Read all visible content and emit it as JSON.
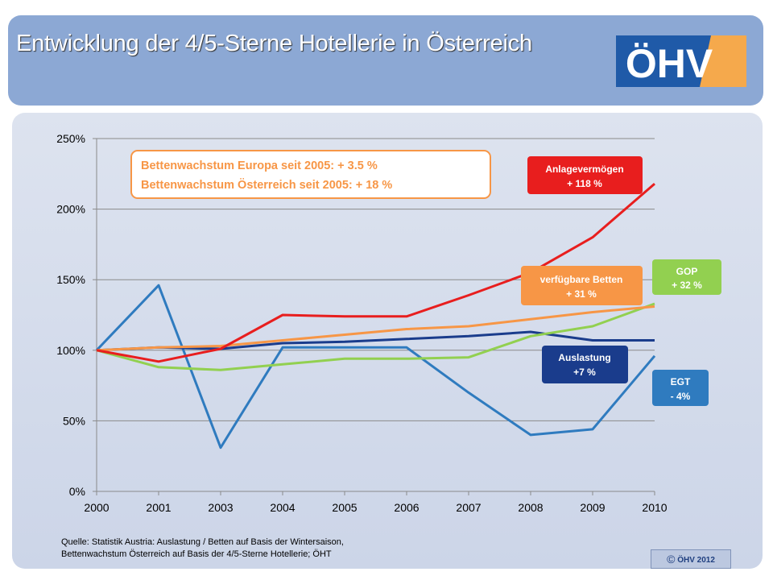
{
  "title": "Entwicklung der 4/5-Sterne Hotellerie in Österreich",
  "logo": {
    "text": "ÖHV",
    "colors": {
      "blue": "#1f5aa8",
      "orange": "#f5a94c"
    }
  },
  "source": {
    "line1": "Quelle: Statistik Austria: Auslastung / Betten auf Basis der Wintersaison,",
    "line2": "Bettenwachstum Österreich auf Basis der 4/5-Sterne Hotellerie; ÖHT"
  },
  "copyright": {
    "symbol": "©",
    "text": "ÖHV 2012"
  },
  "chart_data": {
    "type": "line",
    "x": [
      "2000",
      "2001",
      "2003",
      "2004",
      "2005",
      "2006",
      "2007",
      "2008",
      "2009",
      "2010"
    ],
    "ylim": [
      0,
      250
    ],
    "yticks": [
      0,
      50,
      100,
      150,
      200,
      250
    ],
    "ytick_labels": [
      "0%",
      "50%",
      "100%",
      "150%",
      "200%",
      "250%"
    ],
    "grid": "horizontal",
    "series": [
      {
        "key": "egt",
        "color": "#2f7bbf",
        "values": [
          100,
          146,
          31,
          102,
          102,
          102,
          70,
          40,
          44,
          96
        ]
      },
      {
        "key": "auslastung",
        "color": "#1a3c8c",
        "values": [
          100,
          102,
          101,
          105,
          106,
          108,
          110,
          113,
          107,
          107
        ]
      },
      {
        "key": "gop",
        "color": "#92d050",
        "values": [
          100,
          88,
          86,
          90,
          94,
          94,
          95,
          110,
          117,
          133
        ]
      },
      {
        "key": "betten",
        "color": "#f79646",
        "values": [
          100,
          102,
          103,
          107,
          111,
          115,
          117,
          122,
          127,
          131
        ]
      },
      {
        "key": "anlage",
        "color": "#e81e1e",
        "values": [
          100,
          92,
          101,
          125,
          124,
          124,
          139,
          155,
          180,
          218
        ]
      }
    ],
    "annotations": {
      "box_line1": "Bettenwachstum Europa seit 2005: + 3.5 %",
      "box_line2": "Bettenwachstum Österreich seit 2005: + 18 %",
      "anlage": {
        "line1": "Anlagevermögen",
        "line2": "+ 118 %",
        "color": "#e81e1e"
      },
      "betten": {
        "line1": "verfügbare Betten",
        "line2": "+ 31 %",
        "color": "#f79646"
      },
      "gop": {
        "line1": "GOP",
        "line2": "+ 32 %",
        "color": "#92d050"
      },
      "auslastung": {
        "line1": "Auslastung",
        "line2": "+7 %",
        "color": "#1a3c8c"
      },
      "egt": {
        "line1": "EGT",
        "line2": "- 4%",
        "color": "#2f7bbf"
      }
    }
  }
}
